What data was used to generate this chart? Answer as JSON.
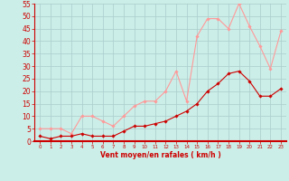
{
  "x": [
    0,
    1,
    2,
    3,
    4,
    5,
    6,
    7,
    8,
    9,
    10,
    11,
    12,
    13,
    14,
    15,
    16,
    17,
    18,
    19,
    20,
    21,
    22,
    23
  ],
  "wind_avg": [
    2,
    1,
    2,
    2,
    3,
    2,
    2,
    2,
    4,
    6,
    6,
    7,
    8,
    10,
    12,
    15,
    20,
    23,
    27,
    28,
    24,
    18,
    18,
    21
  ],
  "wind_gust": [
    5,
    5,
    5,
    3,
    10,
    10,
    8,
    6,
    10,
    14,
    16,
    16,
    20,
    28,
    16,
    42,
    49,
    49,
    45,
    55,
    46,
    38,
    29,
    44
  ],
  "ylim": [
    0,
    55
  ],
  "yticks": [
    0,
    5,
    10,
    15,
    20,
    25,
    30,
    35,
    40,
    45,
    50,
    55
  ],
  "xlabel": "Vent moyen/en rafales ( km/h )",
  "bg_color": "#cceee8",
  "grid_color": "#aacccc",
  "avg_color": "#cc0000",
  "gust_color": "#ff9999",
  "marker": "D",
  "marker_size": 1.8,
  "line_width": 0.8,
  "xlabel_color": "#cc0000",
  "tick_color": "#cc0000",
  "axis_line_color": "#cc0000",
  "ytick_fontsize": 5.5,
  "xtick_fontsize": 4.0,
  "xlabel_fontsize": 5.5
}
